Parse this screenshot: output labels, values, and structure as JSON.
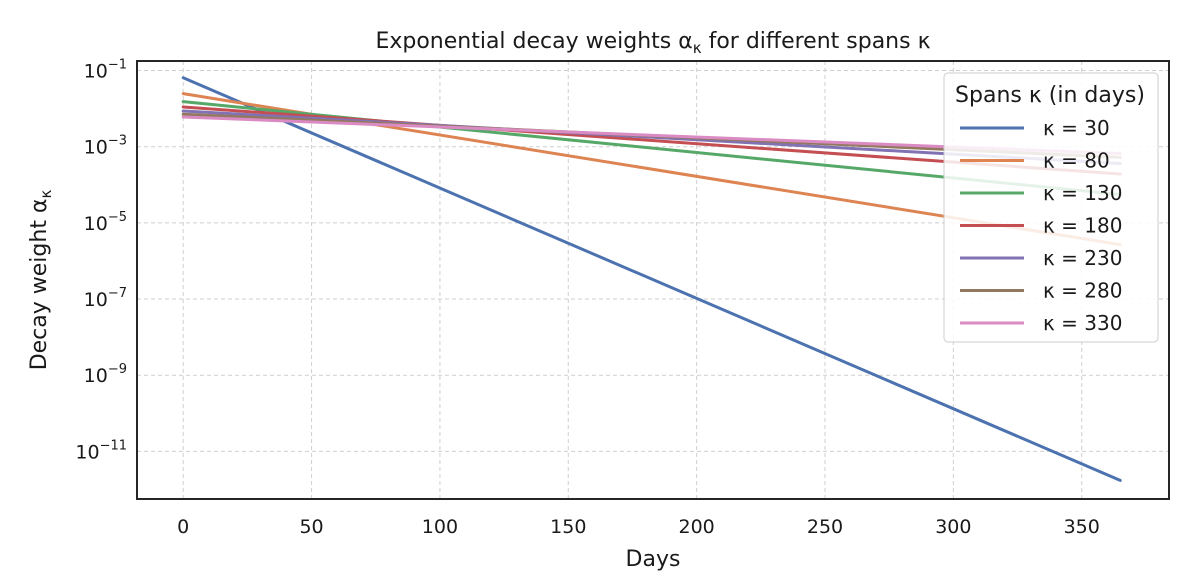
{
  "chart_data": {
    "type": "line",
    "title": "Exponential decay weights α",
    "title_sub": "κ",
    "title_suffix": " for different spans κ",
    "xlabel": "Days",
    "ylabel": "Decay weight α",
    "ylabel_sub": "κ",
    "y_scale": "log",
    "xlim": [
      -18,
      384
    ],
    "ylim_exp": [
      -12.25,
      -0.75
    ],
    "grid": true,
    "x_ticks": [
      0,
      50,
      100,
      150,
      200,
      250,
      300,
      350
    ],
    "y_ticks": [
      {
        "exp": -1,
        "base": "10",
        "sup": "−1"
      },
      {
        "exp": -3,
        "base": "10",
        "sup": "−3"
      },
      {
        "exp": -5,
        "base": "10",
        "sup": "−5"
      },
      {
        "exp": -7,
        "base": "10",
        "sup": "−7"
      },
      {
        "exp": -9,
        "base": "10",
        "sup": "−9"
      },
      {
        "exp": -11,
        "base": "10",
        "sup": "−11"
      }
    ],
    "x_range_days": [
      0,
      365
    ],
    "legend": {
      "title": "Spans κ (in days)",
      "placement": "top-right"
    },
    "series": [
      {
        "name": "κ = 30",
        "span": 30,
        "color": "#4c72b0"
      },
      {
        "name": "κ = 80",
        "span": 80,
        "color": "#dd8452"
      },
      {
        "name": "κ = 130",
        "span": 130,
        "color": "#55a868"
      },
      {
        "name": "κ = 180",
        "span": 180,
        "color": "#c44e52"
      },
      {
        "name": "κ = 230",
        "span": 230,
        "color": "#8172b3"
      },
      {
        "name": "κ = 280",
        "span": 280,
        "color": "#937860"
      },
      {
        "name": "κ = 330",
        "span": 330,
        "color": "#da8bc3"
      }
    ]
  }
}
